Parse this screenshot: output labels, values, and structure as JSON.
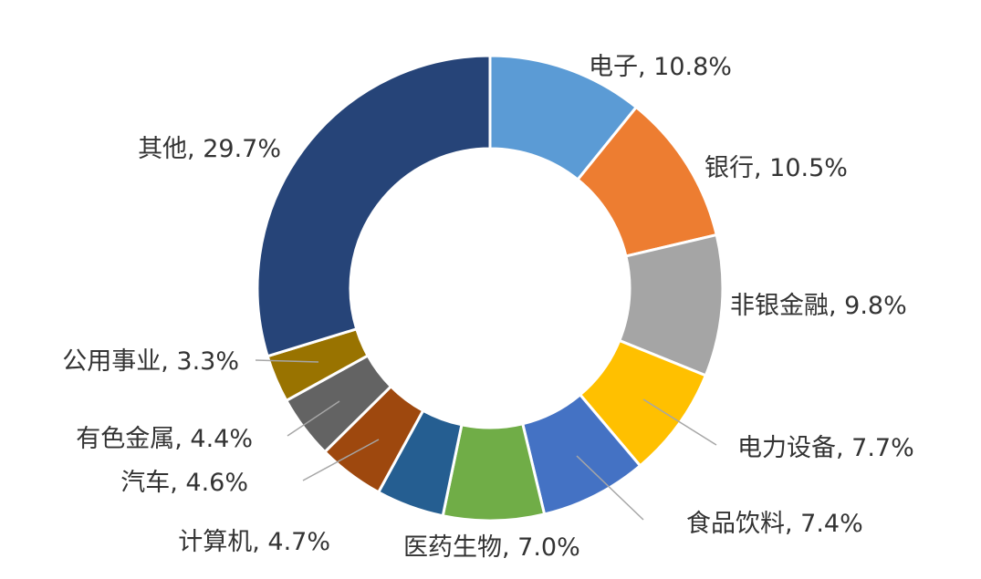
{
  "chart_data": {
    "type": "pie",
    "subtype": "donut",
    "title": "",
    "legend": "none",
    "slices": [
      {
        "label": "电子",
        "value": 10.8,
        "text": "电子, 10.8%",
        "color": "#5B9BD5"
      },
      {
        "label": "银行",
        "value": 10.5,
        "text": "银行, 10.5%",
        "color": "#ED7D31"
      },
      {
        "label": "非银金融",
        "value": 9.8,
        "text": "非银金融, 9.8%",
        "color": "#A5A5A5"
      },
      {
        "label": "电力设备",
        "value": 7.7,
        "text": "电力设备, 7.7%",
        "color": "#FFC000"
      },
      {
        "label": "食品饮料",
        "value": 7.4,
        "text": "食品饮料, 7.4%",
        "color": "#4472C4"
      },
      {
        "label": "医药生物",
        "value": 7.0,
        "text": "医药生物, 7.0%",
        "color": "#70AD47"
      },
      {
        "label": "计算机",
        "value": 4.7,
        "text": "计算机, 4.7%",
        "color": "#255E91"
      },
      {
        "label": "汽车",
        "value": 4.6,
        "text": "汽车, 4.6%",
        "color": "#9E480E"
      },
      {
        "label": "有色金属",
        "value": 4.4,
        "text": "有色金属, 4.4%",
        "color": "#636363"
      },
      {
        "label": "公用事业",
        "value": 3.3,
        "text": "公用事业, 3.3%",
        "color": "#997300"
      },
      {
        "label": "其他",
        "value": 29.7,
        "text": "其他, 29.7%",
        "color": "#264478"
      }
    ]
  }
}
